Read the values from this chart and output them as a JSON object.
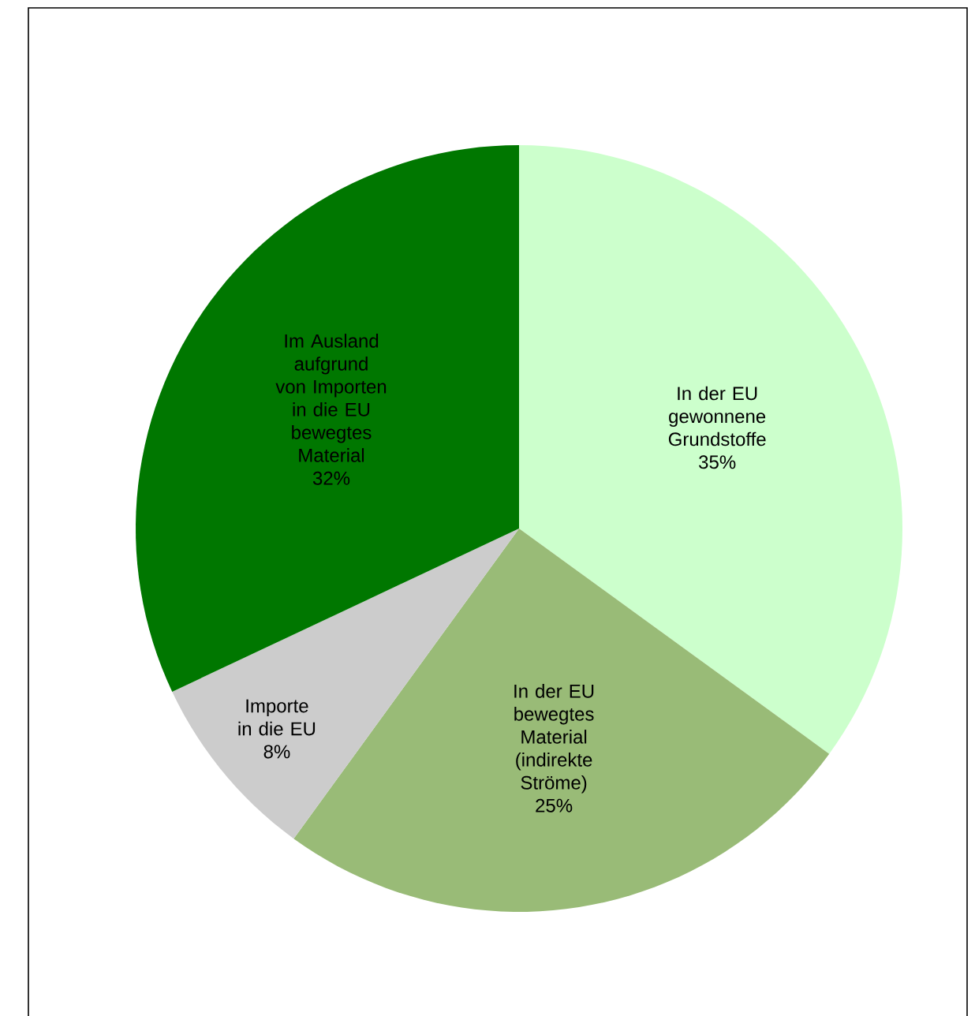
{
  "chart_data": {
    "type": "pie",
    "categories": [
      "In der EU gewonnene Grundstoffe",
      "In der EU bewegtes Material (indirekte Ströme)",
      "Importe in die EU",
      "Im Ausland aufgrund von Importen in die EU bewegtes Material"
    ],
    "values": [
      35,
      25,
      8,
      32
    ],
    "value_labels": [
      "35%",
      "25%",
      "8%",
      "32%"
    ],
    "colors": [
      "#ccffcc",
      "#99bb77",
      "#cccccc",
      "#007700"
    ]
  }
}
